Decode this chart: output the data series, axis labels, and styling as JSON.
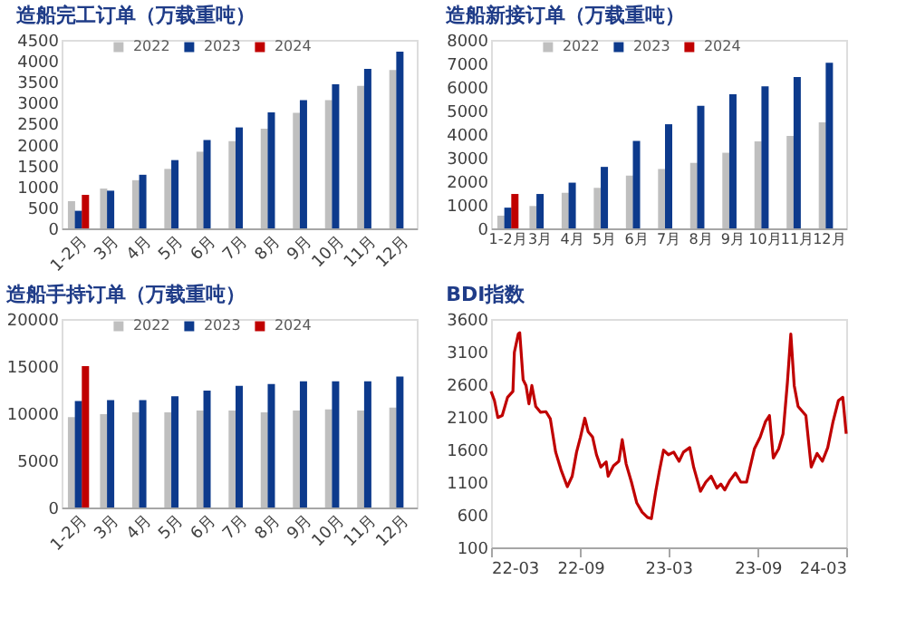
{
  "chart_data": [
    {
      "type": "bar",
      "title": "造船完工订单（万载重吨）",
      "categories": [
        "1-2月",
        "3月",
        "4月",
        "5月",
        "6月",
        "7月",
        "8月",
        "9月",
        "10月",
        "11月",
        "12月"
      ],
      "series": [
        {
          "name": "2022",
          "color": "#bfbfbf",
          "values": [
            650,
            950,
            1150,
            1420,
            1830,
            2080,
            2380,
            2760,
            3060,
            3400,
            3780
          ]
        },
        {
          "name": "2023",
          "color": "#0d3a8c",
          "values": [
            420,
            900,
            1280,
            1630,
            2110,
            2410,
            2770,
            3060,
            3440,
            3810,
            4220
          ]
        },
        {
          "name": "2024",
          "color": "#c00000",
          "values": [
            800,
            null,
            null,
            null,
            null,
            null,
            null,
            null,
            null,
            null,
            null
          ]
        }
      ],
      "ylim": [
        0,
        4500
      ],
      "yticks": [
        0,
        500,
        1000,
        1500,
        2000,
        2500,
        3000,
        3500,
        4000,
        4500
      ],
      "legend": "top",
      "grid": false
    },
    {
      "type": "bar",
      "title": "造船新接订单（万载重吨）",
      "categories": [
        "1-2月",
        "3月",
        "4月",
        "5月",
        "6月",
        "7月",
        "8月",
        "9月",
        "10月",
        "11月",
        "12月"
      ],
      "series": [
        {
          "name": "2022",
          "color": "#bfbfbf",
          "values": [
            540,
            950,
            1510,
            1720,
            2240,
            2520,
            2780,
            3210,
            3690,
            3920,
            4500
          ]
        },
        {
          "name": "2023",
          "color": "#0d3a8c",
          "values": [
            880,
            1460,
            1940,
            2610,
            3710,
            4420,
            5200,
            5690,
            6030,
            6420,
            7030
          ]
        },
        {
          "name": "2024",
          "color": "#c00000",
          "values": [
            1460,
            null,
            null,
            null,
            null,
            null,
            null,
            null,
            null,
            null,
            null
          ]
        }
      ],
      "ylim": [
        0,
        8000
      ],
      "yticks": [
        0,
        1000,
        2000,
        3000,
        4000,
        5000,
        6000,
        7000,
        8000
      ],
      "legend": "top",
      "grid": false
    },
    {
      "type": "bar",
      "title": "造船手持订单（万载重吨）",
      "categories": [
        "1-2月",
        "3月",
        "4月",
        "5月",
        "6月",
        "7月",
        "8月",
        "9月",
        "10月",
        "11月",
        "12月"
      ],
      "series": [
        {
          "name": "2022",
          "color": "#bfbfbf",
          "values": [
            9600,
            9900,
            10100,
            10100,
            10300,
            10300,
            10100,
            10300,
            10400,
            10300,
            10600
          ]
        },
        {
          "name": "2023",
          "color": "#0d3a8c",
          "values": [
            11300,
            11400,
            11400,
            11800,
            12400,
            12900,
            13100,
            13400,
            13400,
            13400,
            13900
          ]
        },
        {
          "name": "2024",
          "color": "#c00000",
          "values": [
            15000,
            null,
            null,
            null,
            null,
            null,
            null,
            null,
            null,
            null,
            null
          ]
        }
      ],
      "ylim": [
        0,
        20000
      ],
      "yticks": [
        0,
        5000,
        10000,
        15000,
        20000
      ],
      "legend": "top",
      "grid": false
    },
    {
      "type": "line",
      "title": "BDI指数",
      "x": [
        "2022-03-01",
        "2022-03-08",
        "2022-03-15",
        "2022-03-24",
        "2022-04-04",
        "2022-04-15",
        "2022-04-18",
        "2022-04-26",
        "2022-04-29",
        "2022-05-06",
        "2022-05-12",
        "2022-05-18",
        "2022-05-24",
        "2022-06-01",
        "2022-06-11",
        "2022-06-22",
        "2022-07-01",
        "2022-07-12",
        "2022-07-23",
        "2022-08-05",
        "2022-08-15",
        "2022-08-24",
        "2022-09-01",
        "2022-09-10",
        "2022-09-17",
        "2022-09-26",
        "2022-10-04",
        "2022-10-13",
        "2022-10-24",
        "2022-10-28",
        "2022-11-08",
        "2022-11-19",
        "2022-11-26",
        "2022-12-04",
        "2022-12-15",
        "2022-12-26",
        "2023-01-06",
        "2023-01-17",
        "2023-01-25",
        "2023-02-03",
        "2023-02-11",
        "2023-02-19",
        "2023-03-01",
        "2023-03-12",
        "2023-03-23",
        "2023-04-01",
        "2023-04-14",
        "2023-04-22",
        "2023-05-06",
        "2023-05-17",
        "2023-05-28",
        "2023-06-09",
        "2023-06-17",
        "2023-06-25",
        "2023-07-06",
        "2023-07-17",
        "2023-07-28",
        "2023-08-09",
        "2023-08-25",
        "2023-09-06",
        "2023-09-17",
        "2023-09-25",
        "2023-10-03",
        "2023-10-14",
        "2023-10-23",
        "2023-11-01",
        "2023-11-08",
        "2023-11-15",
        "2023-11-23",
        "2023-12-09",
        "2023-12-20",
        "2024-01-01",
        "2024-01-12",
        "2024-01-23",
        "2024-02-03",
        "2024-02-14",
        "2024-02-23",
        "2024-03-01"
      ],
      "series": [
        {
          "color": "#c00000",
          "values": [
            2490,
            2350,
            2090,
            2120,
            2400,
            2490,
            3090,
            3370,
            3390,
            2670,
            2580,
            2300,
            2580,
            2260,
            2170,
            2180,
            2070,
            1560,
            1290,
            1030,
            1190,
            1560,
            1790,
            2080,
            1870,
            1790,
            1520,
            1330,
            1410,
            1190,
            1350,
            1420,
            1750,
            1380,
            1100,
            780,
            640,
            560,
            540,
            960,
            1290,
            1590,
            1520,
            1560,
            1420,
            1560,
            1630,
            1330,
            960,
            1100,
            1190,
            1010,
            1070,
            980,
            1130,
            1240,
            1100,
            1100,
            1610,
            1790,
            2030,
            2120,
            1470,
            1610,
            1840,
            2630,
            3370,
            2580,
            2260,
            2120,
            1330,
            1540,
            1420,
            1630,
            2030,
            2350,
            2400,
            1840
          ]
        }
      ],
      "xlim": [
        "2022-03-01",
        "2024-03-01"
      ],
      "xticks": [
        {
          "value": "2022-03-01",
          "label": "22-03"
        },
        {
          "value": "2022-09-01",
          "label": "22-09"
        },
        {
          "value": "2023-03-01",
          "label": "23-03"
        },
        {
          "value": "2023-09-01",
          "label": "23-09"
        },
        {
          "value": "2024-03-01",
          "label": "24-03"
        }
      ],
      "ylim": [
        100,
        3600
      ],
      "yticks": [
        100,
        600,
        1100,
        1600,
        2100,
        2600,
        3100,
        3600
      ],
      "grid": false,
      "legend": false,
      "marker": "none",
      "line_style": "solid"
    }
  ]
}
